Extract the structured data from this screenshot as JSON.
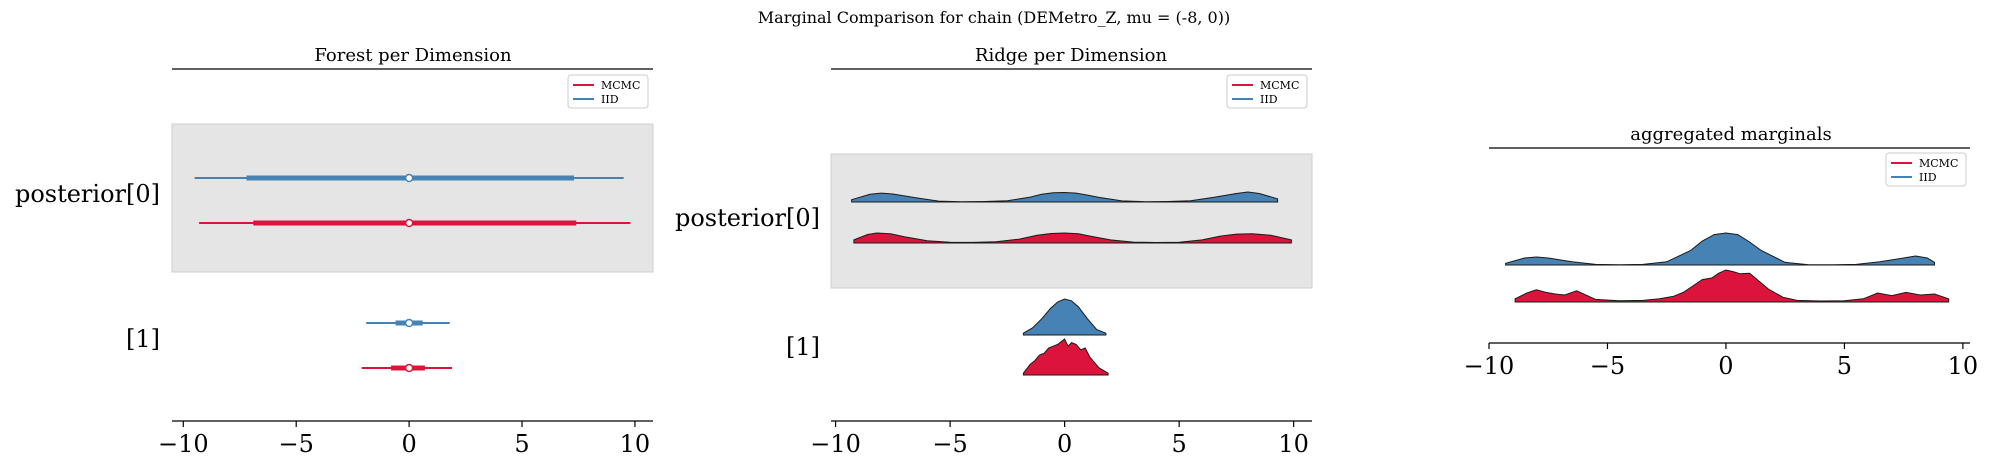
{
  "figure": {
    "suptitle": "Marginal Comparison for chain (DEMetro_Z, mu = (-8, 0))"
  },
  "colors": {
    "mcmc": "#dc143c",
    "iid": "#4682b4",
    "band": "#e5e5e5",
    "point_face": "#ffffff"
  },
  "chart_data": [
    {
      "type": "forest",
      "title": "Forest per Dimension",
      "legend": {
        "entries": [
          "MCMC",
          "IID"
        ],
        "placement": "top-right"
      },
      "rows": [
        {
          "label": "posterior[0]",
          "band": true
        },
        {
          "label": "[1]",
          "band": false
        }
      ],
      "series": [
        {
          "name": "IID",
          "row": 0,
          "hdi_outer": [
            -9.5,
            9.5
          ],
          "hdi_inner": [
            -7.2,
            7.3
          ],
          "point": 0.0
        },
        {
          "name": "MCMC",
          "row": 0,
          "hdi_outer": [
            -9.3,
            9.8
          ],
          "hdi_inner": [
            -6.9,
            7.4
          ],
          "point": 0.0
        },
        {
          "name": "IID",
          "row": 1,
          "hdi_outer": [
            -1.9,
            1.8
          ],
          "hdi_inner": [
            -0.6,
            0.6
          ],
          "point": 0.0
        },
        {
          "name": "MCMC",
          "row": 1,
          "hdi_outer": [
            -2.1,
            1.9
          ],
          "hdi_inner": [
            -0.8,
            0.7
          ],
          "point": 0.0
        }
      ],
      "xlim": [
        -10.5,
        10.8
      ],
      "xticks": [
        "−10",
        "−5",
        "0",
        "5",
        "10"
      ],
      "xtick_values": [
        -10,
        -5,
        0,
        5,
        10
      ]
    },
    {
      "type": "ridgeline",
      "title": "Ridge per Dimension",
      "legend": {
        "entries": [
          "MCMC",
          "IID"
        ],
        "placement": "top-right"
      },
      "rows": [
        {
          "label": "posterior[0]",
          "band": true
        },
        {
          "label": "[1]",
          "band": false
        }
      ],
      "series": [
        {
          "name": "IID",
          "row": 0,
          "x": [
            -9.3,
            -8.5,
            -8.0,
            -7.5,
            -6.5,
            -5.5,
            -4.5,
            -3.5,
            -2.5,
            -1.5,
            -1.0,
            -0.5,
            0.0,
            0.5,
            1.0,
            1.5,
            2.5,
            3.5,
            4.5,
            5.5,
            6.5,
            7.5,
            8.0,
            8.5,
            9.3
          ],
          "density": [
            0.15,
            0.5,
            0.58,
            0.52,
            0.28,
            0.06,
            0.02,
            0.03,
            0.08,
            0.32,
            0.5,
            0.6,
            0.62,
            0.58,
            0.45,
            0.3,
            0.07,
            0.02,
            0.03,
            0.08,
            0.3,
            0.55,
            0.65,
            0.55,
            0.2
          ]
        },
        {
          "name": "MCMC",
          "row": 0,
          "x": [
            -9.2,
            -8.6,
            -8.2,
            -7.6,
            -7.0,
            -6.0,
            -5.0,
            -4.0,
            -3.0,
            -2.0,
            -1.2,
            -0.6,
            0.0,
            0.6,
            1.2,
            2.0,
            3.0,
            4.0,
            5.0,
            6.0,
            6.8,
            7.5,
            8.2,
            9.0,
            9.9
          ],
          "density": [
            0.2,
            0.55,
            0.65,
            0.6,
            0.4,
            0.15,
            0.05,
            0.04,
            0.08,
            0.25,
            0.5,
            0.62,
            0.65,
            0.6,
            0.42,
            0.2,
            0.06,
            0.03,
            0.05,
            0.2,
            0.45,
            0.58,
            0.6,
            0.5,
            0.2
          ]
        },
        {
          "name": "IID",
          "row": 1,
          "x": [
            -1.8,
            -1.4,
            -1.0,
            -0.6,
            -0.3,
            0.0,
            0.3,
            0.6,
            1.0,
            1.4,
            1.8
          ],
          "density": [
            0.05,
            0.2,
            0.45,
            0.75,
            0.92,
            1.0,
            0.95,
            0.78,
            0.45,
            0.15,
            0.05
          ]
        },
        {
          "name": "MCMC",
          "row": 1,
          "x": [
            -1.8,
            -1.5,
            -1.3,
            -1.1,
            -0.9,
            -0.7,
            -0.5,
            -0.3,
            -0.1,
            0.0,
            0.15,
            0.3,
            0.5,
            0.7,
            0.9,
            1.1,
            1.3,
            1.5,
            1.9
          ],
          "density": [
            0.05,
            0.3,
            0.4,
            0.55,
            0.6,
            0.75,
            0.8,
            0.85,
            0.95,
            1.0,
            0.8,
            0.9,
            0.85,
            0.7,
            0.75,
            0.5,
            0.35,
            0.2,
            0.05
          ]
        }
      ],
      "xlim": [
        -10.2,
        10.8
      ],
      "xticks": [
        "−10",
        "−5",
        "0",
        "5",
        "10"
      ],
      "xtick_values": [
        -10,
        -5,
        0,
        5,
        10
      ]
    },
    {
      "type": "ridgeline",
      "title": "aggregated marginals",
      "legend": {
        "entries": [
          "MCMC",
          "IID"
        ],
        "placement": "top-right"
      },
      "series": [
        {
          "name": "IID",
          "x": [
            -9.3,
            -8.5,
            -8.0,
            -7.5,
            -6.5,
            -5.5,
            -4.5,
            -3.5,
            -2.5,
            -1.5,
            -1.0,
            -0.5,
            0.0,
            0.5,
            1.0,
            1.5,
            2.5,
            3.5,
            4.5,
            5.5,
            6.5,
            7.5,
            8.0,
            8.5,
            8.8
          ],
          "density": [
            0.05,
            0.22,
            0.25,
            0.22,
            0.1,
            0.02,
            0.01,
            0.02,
            0.1,
            0.45,
            0.75,
            0.95,
            1.0,
            0.95,
            0.72,
            0.45,
            0.08,
            0.01,
            0.01,
            0.02,
            0.1,
            0.22,
            0.28,
            0.22,
            0.08
          ]
        },
        {
          "name": "MCMC",
          "x": [
            -8.9,
            -8.4,
            -8.0,
            -7.6,
            -7.2,
            -6.8,
            -6.3,
            -5.5,
            -4.5,
            -3.5,
            -2.8,
            -2.2,
            -1.8,
            -1.4,
            -1.0,
            -0.6,
            -0.3,
            0.0,
            0.3,
            0.6,
            1.0,
            1.4,
            1.8,
            2.4,
            3.0,
            4.0,
            5.0,
            5.8,
            6.4,
            7.0,
            7.6,
            8.2,
            8.8,
            9.4
          ],
          "density": [
            0.1,
            0.28,
            0.38,
            0.3,
            0.25,
            0.22,
            0.35,
            0.08,
            0.04,
            0.05,
            0.1,
            0.18,
            0.3,
            0.5,
            0.7,
            0.75,
            0.9,
            1.0,
            0.95,
            0.88,
            0.9,
            0.65,
            0.4,
            0.15,
            0.05,
            0.03,
            0.04,
            0.1,
            0.28,
            0.2,
            0.3,
            0.22,
            0.25,
            0.1
          ]
        }
      ],
      "xlim": [
        -10.0,
        10.3
      ],
      "xticks": [
        "−10",
        "−5",
        "0",
        "5",
        "10"
      ],
      "xtick_values": [
        -10,
        -5,
        0,
        5,
        10
      ]
    }
  ]
}
